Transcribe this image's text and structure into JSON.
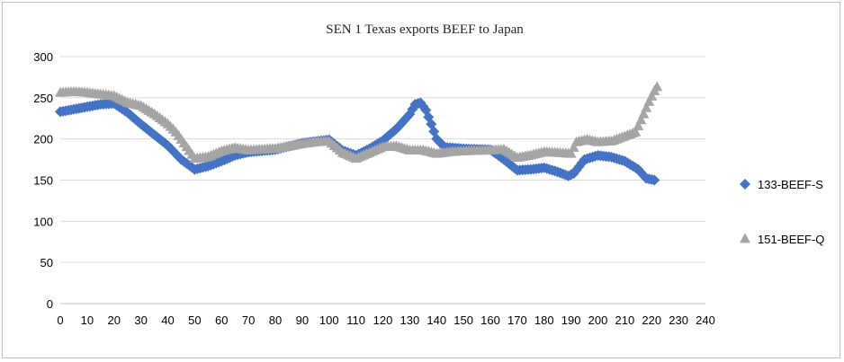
{
  "chart_data": {
    "type": "scatter",
    "title": "SEN 1 Texas exports BEEF to Japan",
    "xlabel": "",
    "ylabel": "",
    "xlim": [
      0,
      240
    ],
    "ylim": [
      0,
      300
    ],
    "xticks": [
      0,
      10,
      20,
      30,
      40,
      50,
      60,
      70,
      80,
      90,
      100,
      110,
      120,
      130,
      140,
      150,
      160,
      170,
      180,
      190,
      200,
      210,
      220,
      230,
      240
    ],
    "yticks": [
      0,
      50,
      100,
      150,
      200,
      250,
      300
    ],
    "grid": "horizontal",
    "legend_position": "right",
    "series": [
      {
        "name": "133-BEEF-S",
        "color": "#4472C4",
        "marker": "diamond",
        "points": [
          [
            0,
            233
          ],
          [
            5,
            236
          ],
          [
            10,
            239
          ],
          [
            15,
            242
          ],
          [
            20,
            243
          ],
          [
            25,
            232
          ],
          [
            30,
            218
          ],
          [
            35,
            205
          ],
          [
            40,
            192
          ],
          [
            45,
            175
          ],
          [
            50,
            163
          ],
          [
            55,
            167
          ],
          [
            60,
            173
          ],
          [
            65,
            180
          ],
          [
            70,
            184
          ],
          [
            80,
            187
          ],
          [
            90,
            195
          ],
          [
            100,
            199
          ],
          [
            105,
            186
          ],
          [
            110,
            180
          ],
          [
            115,
            188
          ],
          [
            120,
            198
          ],
          [
            125,
            212
          ],
          [
            130,
            230
          ],
          [
            132,
            242
          ],
          [
            134,
            244
          ],
          [
            136,
            235
          ],
          [
            138,
            218
          ],
          [
            140,
            200
          ],
          [
            143,
            190
          ],
          [
            150,
            188
          ],
          [
            160,
            187
          ],
          [
            165,
            175
          ],
          [
            170,
            162
          ],
          [
            175,
            163
          ],
          [
            180,
            165
          ],
          [
            185,
            160
          ],
          [
            189,
            155
          ],
          [
            191,
            158
          ],
          [
            195,
            175
          ],
          [
            200,
            180
          ],
          [
            205,
            178
          ],
          [
            210,
            173
          ],
          [
            215,
            163
          ],
          [
            218,
            152
          ],
          [
            221,
            150
          ]
        ]
      },
      {
        "name": "151-BEEF-Q",
        "color": "#A5A5A5",
        "marker": "triangle",
        "points": [
          [
            0,
            256
          ],
          [
            5,
            257
          ],
          [
            10,
            256
          ],
          [
            15,
            254
          ],
          [
            20,
            252
          ],
          [
            25,
            244
          ],
          [
            30,
            240
          ],
          [
            35,
            230
          ],
          [
            40,
            218
          ],
          [
            43,
            208
          ],
          [
            47,
            190
          ],
          [
            50,
            176
          ],
          [
            55,
            178
          ],
          [
            60,
            185
          ],
          [
            65,
            189
          ],
          [
            70,
            186
          ],
          [
            80,
            188
          ],
          [
            90,
            194
          ],
          [
            95,
            196
          ],
          [
            100,
            197
          ],
          [
            105,
            183
          ],
          [
            110,
            176
          ],
          [
            115,
            183
          ],
          [
            120,
            190
          ],
          [
            125,
            191
          ],
          [
            130,
            186
          ],
          [
            135,
            186
          ],
          [
            140,
            182
          ],
          [
            145,
            184
          ],
          [
            150,
            185
          ],
          [
            160,
            186
          ],
          [
            165,
            187
          ],
          [
            170,
            177
          ],
          [
            175,
            180
          ],
          [
            180,
            184
          ],
          [
            185,
            183
          ],
          [
            190,
            182
          ],
          [
            192,
            196
          ],
          [
            196,
            199
          ],
          [
            200,
            196
          ],
          [
            205,
            197
          ],
          [
            210,
            203
          ],
          [
            214,
            208
          ],
          [
            217,
            230
          ],
          [
            219,
            245
          ],
          [
            221,
            258
          ],
          [
            222,
            263
          ]
        ]
      }
    ]
  }
}
